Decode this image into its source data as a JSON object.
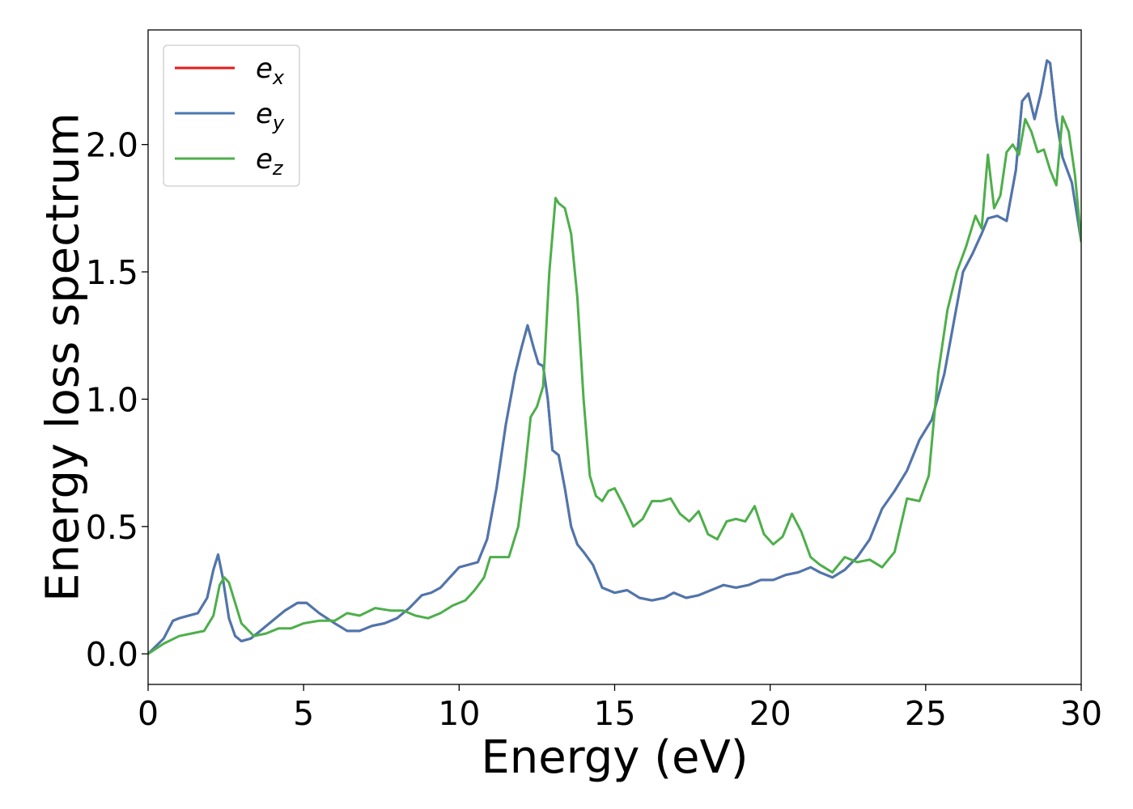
{
  "chart_data": {
    "type": "line",
    "title": "",
    "xlabel": "Energy (eV)",
    "ylabel": "Energy loss spectrum",
    "xlim": [
      0,
      30
    ],
    "ylim": [
      -0.12,
      2.45
    ],
    "xticks": [
      0,
      5,
      10,
      15,
      20,
      25,
      30
    ],
    "xtick_labels": [
      "0",
      "5",
      "10",
      "15",
      "20",
      "25",
      "30"
    ],
    "yticks": [
      0.0,
      0.5,
      1.0,
      1.5,
      2.0
    ],
    "ytick_labels": [
      "0.0",
      "0.5",
      "1.0",
      "1.5",
      "2.0"
    ],
    "grid": false,
    "legend_position": "top-left",
    "series": [
      {
        "name": "e_x",
        "label_main": "e",
        "label_sub": "x",
        "color": "#e41a1c",
        "x": [
          0,
          0.5,
          0.8,
          1.0,
          1.3,
          1.6,
          1.9,
          2.1,
          2.25,
          2.4,
          2.6,
          2.8,
          3.0,
          3.3,
          3.6,
          4.0,
          4.4,
          4.8,
          5.1,
          5.5,
          6.0,
          6.4,
          6.8,
          7.2,
          7.6,
          8.0,
          8.4,
          8.8,
          9.1,
          9.4,
          9.7,
          10.0,
          10.3,
          10.6,
          10.9,
          11.2,
          11.5,
          11.8,
          12.0,
          12.2,
          12.4,
          12.55,
          12.7,
          12.85,
          13.0,
          13.2,
          13.4,
          13.6,
          13.8,
          14.0,
          14.3,
          14.6,
          15.0,
          15.4,
          15.8,
          16.2,
          16.6,
          16.9,
          17.3,
          17.7,
          18.1,
          18.5,
          18.9,
          19.3,
          19.7,
          20.1,
          20.5,
          20.9,
          21.3,
          21.6,
          22.0,
          22.4,
          22.8,
          23.2,
          23.6,
          24.0,
          24.4,
          24.8,
          25.2,
          25.6,
          25.9,
          26.2,
          26.5,
          26.8,
          27.0,
          27.3,
          27.6,
          27.9,
          28.1,
          28.3,
          28.5,
          28.7,
          28.9,
          29.0,
          29.2,
          29.4,
          29.7,
          30.0
        ],
        "y": [
          0.0,
          0.06,
          0.13,
          0.14,
          0.15,
          0.16,
          0.22,
          0.33,
          0.39,
          0.3,
          0.14,
          0.07,
          0.05,
          0.06,
          0.09,
          0.13,
          0.17,
          0.2,
          0.2,
          0.16,
          0.12,
          0.09,
          0.09,
          0.11,
          0.12,
          0.14,
          0.18,
          0.23,
          0.24,
          0.26,
          0.3,
          0.34,
          0.35,
          0.36,
          0.45,
          0.65,
          0.9,
          1.1,
          1.2,
          1.29,
          1.2,
          1.14,
          1.13,
          1.0,
          0.8,
          0.78,
          0.65,
          0.5,
          0.43,
          0.4,
          0.35,
          0.26,
          0.24,
          0.25,
          0.22,
          0.21,
          0.22,
          0.24,
          0.22,
          0.23,
          0.25,
          0.27,
          0.26,
          0.27,
          0.29,
          0.29,
          0.31,
          0.32,
          0.34,
          0.32,
          0.3,
          0.33,
          0.38,
          0.45,
          0.57,
          0.64,
          0.72,
          0.84,
          0.92,
          1.1,
          1.3,
          1.5,
          1.57,
          1.65,
          1.71,
          1.72,
          1.7,
          1.9,
          2.17,
          2.2,
          2.1,
          2.2,
          2.33,
          2.32,
          2.1,
          1.95,
          1.85,
          1.62
        ]
      },
      {
        "name": "e_y",
        "label_main": "e",
        "label_sub": "y",
        "color": "#4a78b0",
        "x": [
          0,
          0.5,
          0.8,
          1.0,
          1.3,
          1.6,
          1.9,
          2.1,
          2.25,
          2.4,
          2.6,
          2.8,
          3.0,
          3.3,
          3.6,
          4.0,
          4.4,
          4.8,
          5.1,
          5.5,
          6.0,
          6.4,
          6.8,
          7.2,
          7.6,
          8.0,
          8.4,
          8.8,
          9.1,
          9.4,
          9.7,
          10.0,
          10.3,
          10.6,
          10.9,
          11.2,
          11.5,
          11.8,
          12.0,
          12.2,
          12.4,
          12.55,
          12.7,
          12.85,
          13.0,
          13.2,
          13.4,
          13.6,
          13.8,
          14.0,
          14.3,
          14.6,
          15.0,
          15.4,
          15.8,
          16.2,
          16.6,
          16.9,
          17.3,
          17.7,
          18.1,
          18.5,
          18.9,
          19.3,
          19.7,
          20.1,
          20.5,
          20.9,
          21.3,
          21.6,
          22.0,
          22.4,
          22.8,
          23.2,
          23.6,
          24.0,
          24.4,
          24.8,
          25.2,
          25.6,
          25.9,
          26.2,
          26.5,
          26.8,
          27.0,
          27.3,
          27.6,
          27.9,
          28.1,
          28.3,
          28.5,
          28.7,
          28.9,
          29.0,
          29.2,
          29.4,
          29.7,
          30.0
        ],
        "y": [
          0.0,
          0.06,
          0.13,
          0.14,
          0.15,
          0.16,
          0.22,
          0.33,
          0.39,
          0.3,
          0.14,
          0.07,
          0.05,
          0.06,
          0.09,
          0.13,
          0.17,
          0.2,
          0.2,
          0.16,
          0.12,
          0.09,
          0.09,
          0.11,
          0.12,
          0.14,
          0.18,
          0.23,
          0.24,
          0.26,
          0.3,
          0.34,
          0.35,
          0.36,
          0.45,
          0.65,
          0.9,
          1.1,
          1.2,
          1.29,
          1.2,
          1.14,
          1.13,
          1.0,
          0.8,
          0.78,
          0.65,
          0.5,
          0.43,
          0.4,
          0.35,
          0.26,
          0.24,
          0.25,
          0.22,
          0.21,
          0.22,
          0.24,
          0.22,
          0.23,
          0.25,
          0.27,
          0.26,
          0.27,
          0.29,
          0.29,
          0.31,
          0.32,
          0.34,
          0.32,
          0.3,
          0.33,
          0.38,
          0.45,
          0.57,
          0.64,
          0.72,
          0.84,
          0.92,
          1.1,
          1.3,
          1.5,
          1.57,
          1.65,
          1.71,
          1.72,
          1.7,
          1.9,
          2.17,
          2.2,
          2.1,
          2.2,
          2.33,
          2.32,
          2.1,
          1.95,
          1.85,
          1.62
        ]
      },
      {
        "name": "e_z",
        "label_main": "e",
        "label_sub": "z",
        "color": "#4daf4a",
        "x": [
          0,
          0.5,
          1.0,
          1.4,
          1.8,
          2.1,
          2.3,
          2.45,
          2.6,
          2.8,
          3.0,
          3.4,
          3.8,
          4.2,
          4.6,
          5.0,
          5.5,
          6.0,
          6.4,
          6.8,
          7.3,
          7.8,
          8.2,
          8.6,
          9.0,
          9.4,
          9.8,
          10.2,
          10.5,
          10.8,
          11.0,
          11.3,
          11.6,
          11.9,
          12.1,
          12.3,
          12.5,
          12.7,
          12.9,
          13.1,
          13.2,
          13.4,
          13.6,
          13.8,
          14.0,
          14.2,
          14.4,
          14.6,
          14.8,
          15.0,
          15.3,
          15.6,
          15.9,
          16.2,
          16.5,
          16.8,
          17.1,
          17.4,
          17.7,
          18.0,
          18.3,
          18.6,
          18.9,
          19.2,
          19.5,
          19.8,
          20.1,
          20.4,
          20.7,
          21.0,
          21.3,
          21.6,
          22.0,
          22.4,
          22.8,
          23.2,
          23.6,
          24.0,
          24.4,
          24.8,
          25.1,
          25.4,
          25.7,
          26.0,
          26.3,
          26.6,
          26.8,
          27.0,
          27.2,
          27.4,
          27.6,
          27.8,
          28.0,
          28.2,
          28.4,
          28.6,
          28.8,
          29.0,
          29.2,
          29.4,
          29.6,
          29.8,
          30.0
        ],
        "y": [
          0.0,
          0.04,
          0.07,
          0.08,
          0.09,
          0.15,
          0.27,
          0.3,
          0.28,
          0.2,
          0.12,
          0.07,
          0.08,
          0.1,
          0.1,
          0.12,
          0.13,
          0.13,
          0.16,
          0.15,
          0.18,
          0.17,
          0.17,
          0.15,
          0.14,
          0.16,
          0.19,
          0.21,
          0.25,
          0.3,
          0.38,
          0.38,
          0.38,
          0.5,
          0.7,
          0.93,
          0.97,
          1.05,
          1.5,
          1.79,
          1.77,
          1.75,
          1.65,
          1.4,
          1.0,
          0.7,
          0.62,
          0.6,
          0.64,
          0.65,
          0.58,
          0.5,
          0.53,
          0.6,
          0.6,
          0.61,
          0.55,
          0.52,
          0.56,
          0.47,
          0.45,
          0.52,
          0.53,
          0.52,
          0.58,
          0.47,
          0.43,
          0.46,
          0.55,
          0.48,
          0.38,
          0.35,
          0.32,
          0.38,
          0.36,
          0.37,
          0.34,
          0.4,
          0.61,
          0.6,
          0.7,
          1.1,
          1.35,
          1.5,
          1.6,
          1.72,
          1.67,
          1.96,
          1.75,
          1.8,
          1.97,
          2.0,
          1.96,
          2.1,
          2.05,
          1.97,
          1.98,
          1.9,
          1.84,
          2.11,
          2.05,
          1.88,
          1.62
        ]
      }
    ]
  }
}
